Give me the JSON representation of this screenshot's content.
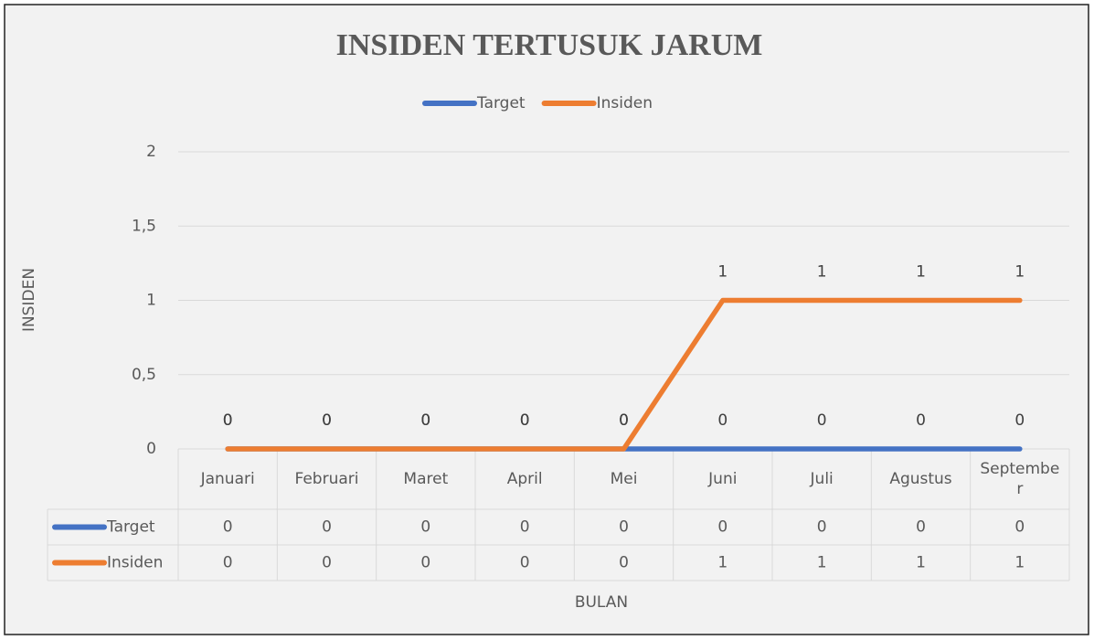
{
  "chart_data": {
    "type": "line",
    "title": "INSIDEN TERTUSUK JARUM",
    "y_label": "INSIDEN",
    "x_label": "BULAN",
    "categories": [
      "Januari",
      "Februari",
      "Maret",
      "April",
      "Mei",
      "Juni",
      "Juli",
      "Agustus",
      "September"
    ],
    "series": [
      {
        "name": "Target",
        "color": "#4472c4",
        "values": [
          0,
          0,
          0,
          0,
          0,
          0,
          0,
          0,
          0
        ]
      },
      {
        "name": "Insiden",
        "color": "#ed7d31",
        "values": [
          0,
          0,
          0,
          0,
          0,
          1,
          1,
          1,
          1
        ]
      }
    ],
    "ylim": [
      0,
      2
    ],
    "yticks": [
      0,
      {
        "value": 0.5,
        "label": "0,5"
      },
      1,
      {
        "value": 1.5,
        "label": "1,5"
      },
      2
    ],
    "grid": true,
    "legend": "top",
    "data_labels": true,
    "data_table": true
  }
}
